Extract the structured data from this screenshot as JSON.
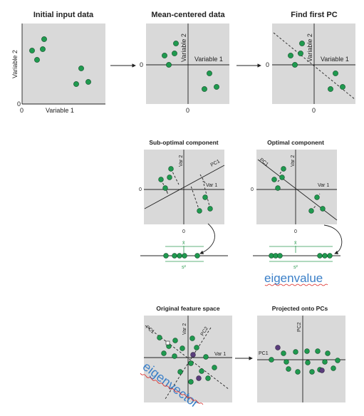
{
  "titles": {
    "initial": "Initial input data",
    "centered": "Mean-centered data",
    "first_pc": "Find first PC",
    "suboptimal": "Sub-optimal component",
    "optimal": "Optimal component",
    "original": "Original feature space",
    "projected": "Projected onto PCs"
  },
  "axis_labels": {
    "variable1": "Variable 1",
    "variable2": "Variable 2",
    "var1": "Var 1",
    "var2": "Var 2",
    "pc1": "PC1",
    "pc2": "PC2"
  },
  "ticks": {
    "zero": "0"
  },
  "stats": {
    "mean": "x̄",
    "variance": "s²"
  },
  "annotations": {
    "eigenvalue": "eigenvalue",
    "eigenvector": "eigenvector"
  },
  "colors": {
    "panel": "#d9d9d9",
    "point": "#1f9a4f",
    "point_highlight": "#5a3d7c",
    "stat_line": "#2e9a52",
    "handwriting": "#3a7fc8",
    "underline": "#d9231f"
  }
}
